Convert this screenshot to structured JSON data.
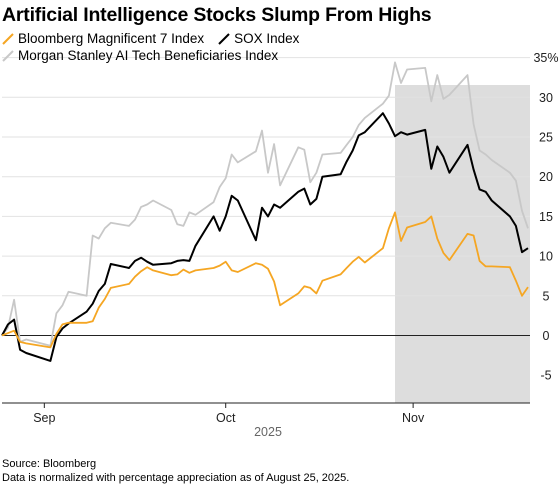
{
  "chart_data": {
    "type": "line",
    "title": "Artificial Intelligence Stocks Slump From Highs",
    "xlabel": "2025",
    "ylabel": "",
    "x_ticks": [
      "Sep",
      "Oct",
      "Nov"
    ],
    "y_ticks": [
      "35%",
      "30",
      "25",
      "20",
      "15",
      "10",
      "5",
      "0",
      "-5"
    ],
    "ylim": [
      -5,
      35
    ],
    "xlim": [
      "2025-08-25",
      "2025-11-20"
    ],
    "grid": true,
    "legend_position": "top-left",
    "shaded_region": {
      "start": "2025-10-29",
      "end": "2025-11-20",
      "color": "#dddddd"
    },
    "series": [
      {
        "name": "Bloomberg Magnificent 7 Index",
        "color": "#f5a623",
        "x": [
          "2025-08-25",
          "2025-08-26",
          "2025-08-27",
          "2025-08-28",
          "2025-08-29",
          "2025-09-02",
          "2025-09-03",
          "2025-09-04",
          "2025-09-05",
          "2025-09-08",
          "2025-09-09",
          "2025-09-10",
          "2025-09-11",
          "2025-09-12",
          "2025-09-15",
          "2025-09-16",
          "2025-09-17",
          "2025-09-18",
          "2025-09-19",
          "2025-09-22",
          "2025-09-23",
          "2025-09-24",
          "2025-09-25",
          "2025-09-26",
          "2025-09-29",
          "2025-09-30",
          "2025-10-01",
          "2025-10-02",
          "2025-10-03",
          "2025-10-06",
          "2025-10-07",
          "2025-10-08",
          "2025-10-09",
          "2025-10-10",
          "2025-10-13",
          "2025-10-14",
          "2025-10-15",
          "2025-10-16",
          "2025-10-17",
          "2025-10-20",
          "2025-10-21",
          "2025-10-22",
          "2025-10-23",
          "2025-10-24",
          "2025-10-27",
          "2025-10-28",
          "2025-10-29",
          "2025-10-30",
          "2025-10-31",
          "2025-11-03",
          "2025-11-04",
          "2025-11-05",
          "2025-11-06",
          "2025-11-07",
          "2025-11-10",
          "2025-11-11",
          "2025-11-12",
          "2025-11-13",
          "2025-11-14",
          "2025-11-17",
          "2025-11-18",
          "2025-11-19",
          "2025-11-20"
        ],
        "values": [
          0,
          0.3,
          0.6,
          -0.8,
          -1.0,
          -1.5,
          0.2,
          1.4,
          1.6,
          1.6,
          1.8,
          3.5,
          4.6,
          6.0,
          6.5,
          7.4,
          8.1,
          8.6,
          8.2,
          7.6,
          7.7,
          8.3,
          7.9,
          8.2,
          8.5,
          8.8,
          9.3,
          8.2,
          8.0,
          9.1,
          8.9,
          8.4,
          6.8,
          3.8,
          5.3,
          6.2,
          6.0,
          5.3,
          6.9,
          7.7,
          8.5,
          9.3,
          9.9,
          9.2,
          11.0,
          13.5,
          15.5,
          11.9,
          13.6,
          14.3,
          15.0,
          12.2,
          10.4,
          9.5,
          12.8,
          12.6,
          9.4,
          8.7,
          8.7,
          8.6,
          6.9,
          5.0,
          6.1
        ]
      },
      {
        "name": "SOX Index",
        "color": "#000000",
        "x": [
          "2025-08-25",
          "2025-08-26",
          "2025-08-27",
          "2025-08-28",
          "2025-08-29",
          "2025-09-02",
          "2025-09-03",
          "2025-09-04",
          "2025-09-05",
          "2025-09-08",
          "2025-09-09",
          "2025-09-10",
          "2025-09-11",
          "2025-09-12",
          "2025-09-15",
          "2025-09-16",
          "2025-09-17",
          "2025-09-18",
          "2025-09-19",
          "2025-09-22",
          "2025-09-23",
          "2025-09-24",
          "2025-09-25",
          "2025-09-26",
          "2025-09-29",
          "2025-09-30",
          "2025-10-01",
          "2025-10-02",
          "2025-10-03",
          "2025-10-06",
          "2025-10-07",
          "2025-10-08",
          "2025-10-09",
          "2025-10-10",
          "2025-10-13",
          "2025-10-14",
          "2025-10-15",
          "2025-10-16",
          "2025-10-17",
          "2025-10-20",
          "2025-10-21",
          "2025-10-22",
          "2025-10-23",
          "2025-10-24",
          "2025-10-27",
          "2025-10-28",
          "2025-10-29",
          "2025-10-30",
          "2025-10-31",
          "2025-11-03",
          "2025-11-04",
          "2025-11-05",
          "2025-11-06",
          "2025-11-07",
          "2025-11-10",
          "2025-11-11",
          "2025-11-12",
          "2025-11-13",
          "2025-11-14",
          "2025-11-17",
          "2025-11-18",
          "2025-11-19",
          "2025-11-20"
        ],
        "values": [
          0,
          1.4,
          2.0,
          -1.8,
          -2.2,
          -3.2,
          -0.2,
          0.9,
          1.5,
          3.0,
          4.0,
          5.6,
          6.5,
          9.0,
          8.5,
          9.4,
          9.8,
          9.3,
          8.9,
          9.1,
          9.4,
          9.5,
          9.4,
          11.3,
          15.0,
          13.2,
          15.0,
          17.6,
          17.0,
          12.0,
          16.1,
          15.0,
          16.5,
          16.1,
          18.1,
          18.5,
          16.5,
          17.2,
          20.0,
          20.3,
          21.9,
          23.3,
          25.2,
          25.6,
          28.0,
          26.7,
          25.1,
          25.6,
          25.3,
          25.9,
          21.0,
          23.8,
          22.5,
          20.5,
          24.0,
          20.9,
          18.4,
          18.1,
          17.0,
          15.0,
          13.8,
          10.5,
          11.0
        ]
      },
      {
        "name": "Morgan Stanley AI Tech Beneficiaries Index",
        "color": "#c8c8c8",
        "x": [
          "2025-08-25",
          "2025-08-26",
          "2025-08-27",
          "2025-08-28",
          "2025-08-29",
          "2025-09-02",
          "2025-09-03",
          "2025-09-04",
          "2025-09-05",
          "2025-09-08",
          "2025-09-09",
          "2025-09-10",
          "2025-09-11",
          "2025-09-12",
          "2025-09-15",
          "2025-09-16",
          "2025-09-17",
          "2025-09-18",
          "2025-09-19",
          "2025-09-22",
          "2025-09-23",
          "2025-09-24",
          "2025-09-25",
          "2025-09-26",
          "2025-09-29",
          "2025-09-30",
          "2025-10-01",
          "2025-10-02",
          "2025-10-03",
          "2025-10-06",
          "2025-10-07",
          "2025-10-08",
          "2025-10-09",
          "2025-10-10",
          "2025-10-13",
          "2025-10-14",
          "2025-10-15",
          "2025-10-16",
          "2025-10-17",
          "2025-10-20",
          "2025-10-21",
          "2025-10-22",
          "2025-10-23",
          "2025-10-24",
          "2025-10-27",
          "2025-10-28",
          "2025-10-29",
          "2025-10-30",
          "2025-10-31",
          "2025-11-03",
          "2025-11-04",
          "2025-11-05",
          "2025-11-06",
          "2025-11-07",
          "2025-11-10",
          "2025-11-11",
          "2025-11-12",
          "2025-11-13",
          "2025-11-14",
          "2025-11-17",
          "2025-11-18",
          "2025-11-19",
          "2025-11-20"
        ],
        "values": [
          0,
          1.0,
          4.5,
          -0.8,
          -0.5,
          -1.3,
          2.8,
          3.8,
          5.5,
          5.0,
          12.6,
          12.2,
          13.5,
          14.2,
          13.8,
          14.6,
          16.2,
          16.5,
          17.0,
          15.8,
          14.0,
          13.8,
          15.5,
          15.2,
          16.8,
          18.7,
          19.8,
          22.8,
          21.8,
          23.2,
          25.8,
          20.5,
          24.1,
          18.9,
          23.7,
          23.4,
          19.3,
          20.5,
          22.8,
          23.0,
          24.0,
          25.0,
          26.5,
          27.4,
          29.2,
          30.2,
          34.4,
          31.8,
          33.5,
          33.7,
          29.5,
          32.8,
          29.8,
          30.3,
          32.8,
          26.6,
          23.3,
          22.8,
          22.1,
          20.5,
          19.5,
          15.7,
          13.5
        ]
      }
    ]
  },
  "footer": {
    "source": "Source: Bloomberg",
    "note": "Data is normalized with percentage appreciation as of August 25, 2025."
  }
}
